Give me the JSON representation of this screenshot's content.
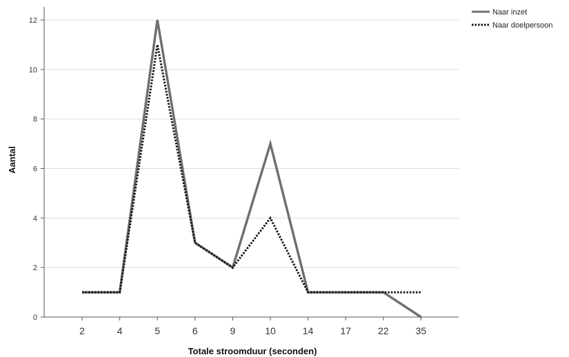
{
  "chart_data": {
    "type": "line",
    "categories": [
      "2",
      "4",
      "5",
      "6",
      "9",
      "10",
      "14",
      "17",
      "22",
      "35"
    ],
    "series": [
      {
        "name": "Naar inzet",
        "values": [
          1,
          1,
          12,
          3,
          2,
          7,
          1,
          1,
          1,
          0
        ],
        "color": "#6f6f6f",
        "style": "solid"
      },
      {
        "name": "Naar doelpersoon",
        "values": [
          1,
          1,
          11,
          3,
          2,
          4,
          1,
          1,
          1,
          1
        ],
        "color": "#151515",
        "style": "dotted"
      }
    ],
    "xlabel": "Totale stroomduur (seconden)",
    "ylabel": "Aantal",
    "ylim": [
      0,
      12
    ],
    "yticks": [
      "0",
      "2",
      "4",
      "6",
      "8",
      "10",
      "12"
    ],
    "grid": true,
    "legend_position": "top-right"
  }
}
